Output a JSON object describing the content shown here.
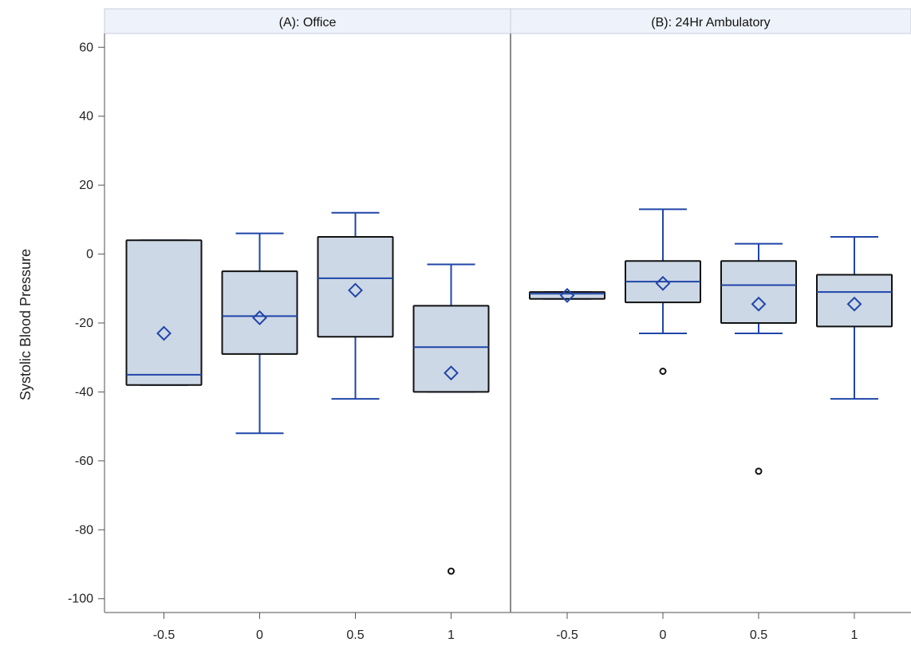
{
  "chart_data": {
    "type": "boxplot",
    "ylabel": "Systolic Blood Pressure",
    "xlabel": "",
    "ylim": [
      -104,
      64
    ],
    "yticks": [
      60,
      40,
      20,
      0,
      -20,
      -40,
      -60,
      -80,
      -100
    ],
    "categories": [
      "-0.5",
      "0",
      "0.5",
      "1"
    ],
    "grid": false,
    "colors": {
      "box_fill": "#cdd8e6",
      "box_edge": "#111111",
      "whisker": "#1f45a8",
      "median": "#1f45a8",
      "mean_marker": "#1f45a8",
      "outlier": "#111111",
      "panel_header": "#eef2fa",
      "frame": "#8a8a8a"
    },
    "panels": [
      {
        "title": "(A): Office",
        "boxes": [
          {
            "category": "-0.5",
            "min": -38,
            "q1": -38,
            "median": -35,
            "q3": 4,
            "max": 4,
            "mean": -23,
            "outliers": []
          },
          {
            "category": "0",
            "min": -52,
            "q1": -29,
            "median": -18,
            "q3": -5,
            "max": 6,
            "mean": -18.5,
            "outliers": []
          },
          {
            "category": "0.5",
            "min": -42,
            "q1": -24,
            "median": -7,
            "q3": 5,
            "max": 12,
            "mean": -10.5,
            "outliers": []
          },
          {
            "category": "1",
            "min": -40,
            "q1": -40,
            "median": -27,
            "q3": -15,
            "max": -3,
            "mean": -34.5,
            "outliers": [
              -92
            ]
          }
        ]
      },
      {
        "title": "(B): 24Hr Ambulatory",
        "boxes": [
          {
            "category": "-0.5",
            "min": -13,
            "q1": -13,
            "median": -11.5,
            "q3": -11,
            "max": -11,
            "mean": -12,
            "outliers": []
          },
          {
            "category": "0",
            "min": -23,
            "q1": -14,
            "median": -8,
            "q3": -2,
            "max": 13,
            "mean": -8.5,
            "outliers": [
              -34
            ]
          },
          {
            "category": "0.5",
            "min": -23,
            "q1": -20,
            "median": -9,
            "q3": -2,
            "max": 3,
            "mean": -14.5,
            "outliers": [
              -63
            ]
          },
          {
            "category": "1",
            "min": -42,
            "q1": -21,
            "median": -11,
            "q3": -6,
            "max": 5,
            "mean": -14.5,
            "outliers": []
          }
        ]
      }
    ]
  }
}
